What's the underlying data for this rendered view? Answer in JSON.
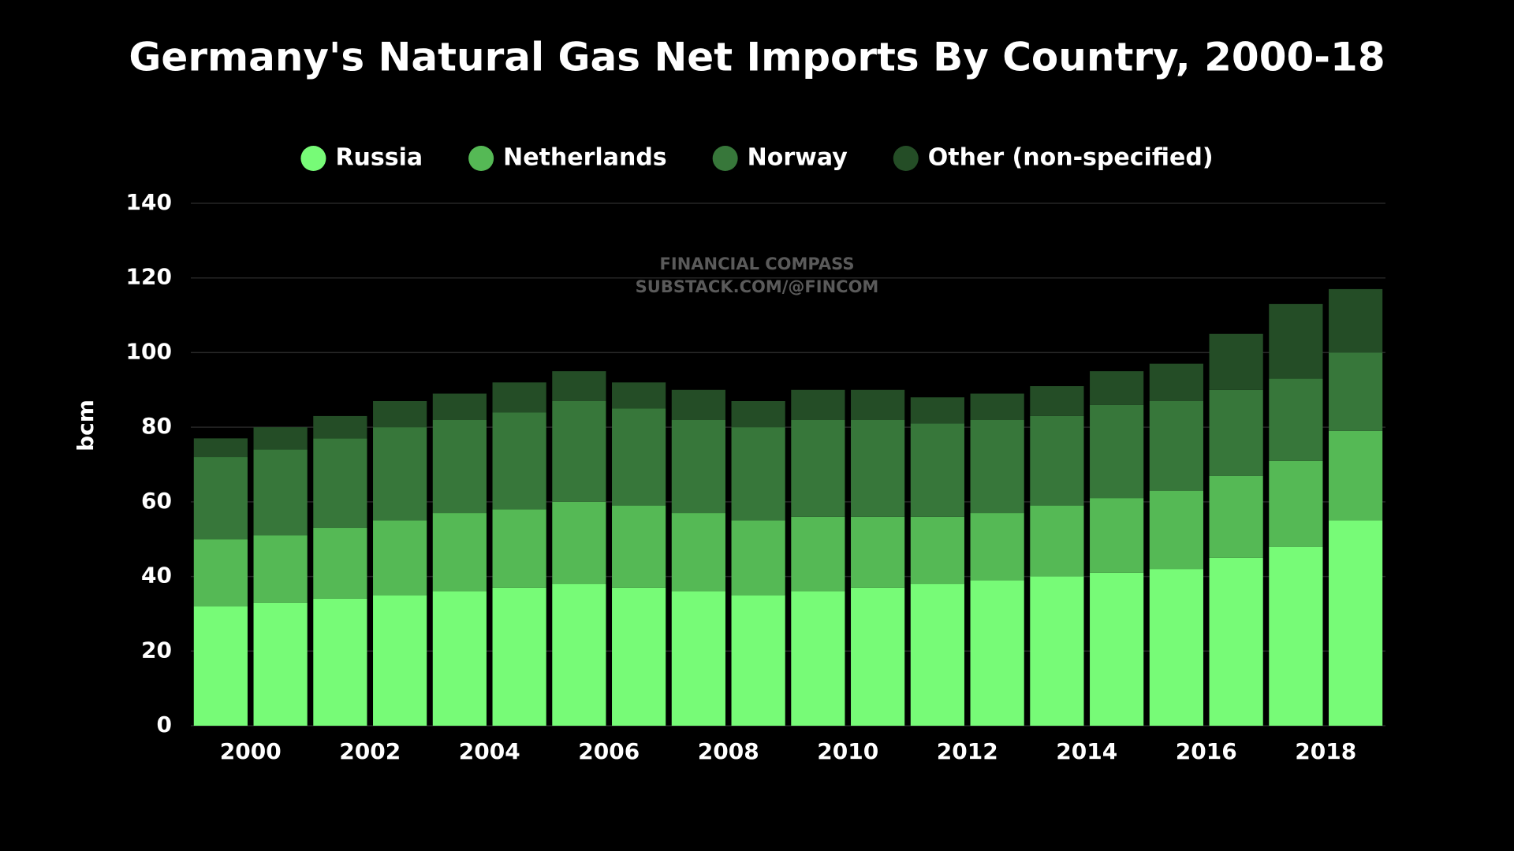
{
  "chart_data": {
    "type": "stacked_bar",
    "title": "Germany's Natural Gas Net Imports By Country, 2000-18",
    "ylabel": "bcm",
    "annotations": [
      "FINANCIAL COMPASS",
      "SUBSTACK.COM/@FINCOM"
    ],
    "categories": [
      null,
      "2000",
      null,
      "2002",
      null,
      "2004",
      null,
      "2006",
      null,
      "2008",
      null,
      "2010",
      null,
      "2012",
      null,
      "2014",
      null,
      "2016",
      null,
      "2018"
    ],
    "series": [
      {
        "name": "Russia",
        "color": "#77fb77",
        "values": [
          32,
          33,
          34,
          35,
          36,
          37,
          38,
          37,
          36,
          35,
          36,
          37,
          38,
          39,
          40,
          41,
          42,
          45,
          48,
          55
        ]
      },
      {
        "name": "Netherlands",
        "color": "#55b955",
        "values": [
          18,
          18,
          19,
          20,
          21,
          21,
          22,
          22,
          21,
          20,
          20,
          19,
          18,
          18,
          19,
          20,
          21,
          22,
          23,
          24
        ]
      },
      {
        "name": "Norway",
        "color": "#37773a",
        "values": [
          22,
          23,
          24,
          25,
          25,
          26,
          27,
          26,
          25,
          25,
          26,
          26,
          25,
          25,
          24,
          25,
          24,
          23,
          22,
          21
        ]
      },
      {
        "name": "Other (non-specified)",
        "color": "#244d26",
        "values": [
          5,
          6,
          6,
          7,
          7,
          8,
          8,
          7,
          8,
          7,
          8,
          8,
          7,
          7,
          8,
          9,
          10,
          15,
          20,
          17
        ]
      }
    ],
    "ylim": [
      0,
      140
    ],
    "yticks": [
      0,
      20,
      40,
      60,
      80,
      100,
      120,
      140
    ],
    "grid": true,
    "legend": "top"
  }
}
